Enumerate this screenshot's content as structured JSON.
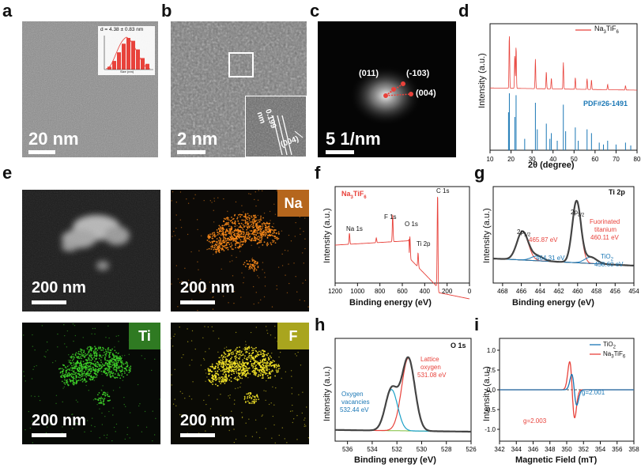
{
  "panels": {
    "a": {
      "label": "a",
      "scale": "20 nm",
      "inset_title": "d = 4.38 ± 0.83 nm",
      "inset_ylabel": "Count",
      "inset_xlabel": "Size (nm)",
      "hist": [
        1,
        3,
        6,
        9,
        11,
        10,
        7,
        4,
        2
      ]
    },
    "b": {
      "label": "b",
      "scale": "2 nm",
      "spacing": "0.199 nm",
      "plane": "(004)"
    },
    "c": {
      "label": "c",
      "scale": "5 1/nm",
      "spots": [
        "(011)",
        "(-103)",
        "(004)"
      ]
    },
    "d": {
      "label": "d",
      "ylabel": "Intensity (a.u.)",
      "xlabel": "2θ (degree)",
      "legend": "Na3TiF6",
      "ref": "PDF#26-1491",
      "xticks": [
        "10",
        "20",
        "30",
        "40",
        "50",
        "60",
        "70",
        "80"
      ]
    },
    "e": {
      "label": "e",
      "scale": "200 nm",
      "elements": [
        "Na",
        "Ti",
        "F"
      ]
    },
    "f": {
      "label": "f",
      "title": "Na3TiF6",
      "ylabel": "Intensity (a.u.)",
      "xlabel": "Binding energy (eV)",
      "peaks": [
        "Na 1s",
        "F 1s",
        "O 1s",
        "Ti 2p",
        "C 1s"
      ],
      "xticks": [
        "1200",
        "1000",
        "800",
        "600",
        "400",
        "200",
        "0"
      ]
    },
    "g": {
      "label": "g",
      "title": "Ti 2p",
      "ylabel": "Intensity (a.u.)",
      "xlabel": "Binding energy (eV)",
      "annot": {
        "p32": "2p3/2",
        "p12": "2p1/2",
        "fluor1": "Fuorinated",
        "fluor2": "titanium",
        "v1": "460.11 eV",
        "v2": "465.87 eV",
        "v3": "464.31 eV",
        "tio2": "TiO2",
        "v4": "458.60 eV"
      },
      "xticks": [
        "468",
        "466",
        "464",
        "462",
        "460",
        "458",
        "456",
        "454"
      ]
    },
    "h": {
      "label": "h",
      "title": "O 1s",
      "ylabel": "Intensity (a.u.)",
      "xlabel": "Binding energy (eV)",
      "annot": {
        "lat1": "Lattice",
        "lat2": "oxygen",
        "lat3": "531.08 eV",
        "vac1": "Oxygen",
        "vac2": "vacancies",
        "vac3": "532.44 eV"
      },
      "xticks": [
        "536",
        "534",
        "532",
        "530",
        "528",
        "526"
      ]
    },
    "i": {
      "label": "i",
      "ylabel": "Intensity (a.u.)",
      "xlabel": "Magnetic Field (mT)",
      "legend": [
        "TiO2",
        "Na3TiF6"
      ],
      "g1": "g=2.001",
      "g2": "g=2.003",
      "xticks": [
        "342",
        "344",
        "346",
        "348",
        "350",
        "352",
        "354",
        "356",
        "358"
      ],
      "yticks": [
        "1.0",
        "0.5",
        "0.0",
        "-0.5",
        "-1.0"
      ]
    }
  },
  "colors": {
    "red": "#e8423b",
    "blue": "#1a77b5",
    "green": "#7fbf3a",
    "teal": "#1aa0c8",
    "na": "#b5661d",
    "ti": "#2f7a22",
    "f": "#a9a51e"
  }
}
